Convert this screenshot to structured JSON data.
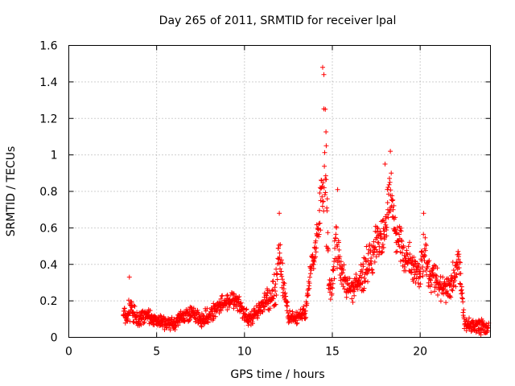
{
  "chart_data": {
    "type": "scatter",
    "title": "Day 265 of 2011, SRMTID for receiver lpal",
    "xlabel": "GPS time / hours",
    "ylabel": "SRMTID / TECUs",
    "xlim": [
      0,
      24
    ],
    "ylim": [
      0,
      1.6
    ],
    "grid": true,
    "marker": "+",
    "color": "#ff0000",
    "xticks": [
      0,
      5,
      10,
      15,
      20
    ],
    "xtick_labels": [
      "0",
      "5",
      "10",
      "15",
      "20"
    ],
    "yticks": [
      0,
      0.2,
      0.4,
      0.6,
      0.8,
      1.0,
      1.2,
      1.4,
      1.6
    ],
    "ytick_labels": [
      "0",
      "0.2",
      "0.4",
      "0.6",
      "0.8",
      "1",
      "1.2",
      "1.4",
      "1.6"
    ],
    "series": [
      {
        "name": "SRMTID",
        "trend_x": [
          3.1,
          3.5,
          4.0,
          4.5,
          5.0,
          5.5,
          6.0,
          6.5,
          7.0,
          7.5,
          8.0,
          8.5,
          9.0,
          9.5,
          9.8,
          10.2,
          10.6,
          11.0,
          11.5,
          11.8,
          12.0,
          12.5,
          13.0,
          13.5,
          13.8,
          14.0,
          14.2,
          14.4,
          14.6,
          14.8,
          15.0,
          15.2,
          15.5,
          16.0,
          16.5,
          17.0,
          17.5,
          18.0,
          18.3,
          18.6,
          19.0,
          19.5,
          20.0,
          20.2,
          20.5,
          21.0,
          21.5,
          22.0,
          22.2,
          22.5,
          23.0,
          23.5,
          23.9
        ],
        "trend_y": [
          0.12,
          0.15,
          0.1,
          0.12,
          0.09,
          0.08,
          0.07,
          0.12,
          0.13,
          0.1,
          0.12,
          0.18,
          0.2,
          0.22,
          0.15,
          0.1,
          0.12,
          0.18,
          0.22,
          0.3,
          0.45,
          0.12,
          0.1,
          0.15,
          0.4,
          0.45,
          0.6,
          0.8,
          0.95,
          0.3,
          0.25,
          0.55,
          0.35,
          0.25,
          0.3,
          0.4,
          0.5,
          0.6,
          0.8,
          0.55,
          0.45,
          0.4,
          0.35,
          0.5,
          0.35,
          0.3,
          0.25,
          0.35,
          0.45,
          0.08,
          0.06,
          0.06,
          0.05
        ],
        "spread_y": [
          0.05,
          0.08,
          0.06,
          0.05,
          0.04,
          0.04,
          0.04,
          0.05,
          0.05,
          0.05,
          0.05,
          0.06,
          0.06,
          0.06,
          0.05,
          0.05,
          0.05,
          0.06,
          0.08,
          0.15,
          0.15,
          0.04,
          0.04,
          0.05,
          0.06,
          0.08,
          0.15,
          0.3,
          0.55,
          0.1,
          0.08,
          0.15,
          0.1,
          0.08,
          0.1,
          0.12,
          0.15,
          0.15,
          0.2,
          0.15,
          0.12,
          0.12,
          0.1,
          0.15,
          0.1,
          0.1,
          0.08,
          0.1,
          0.1,
          0.05,
          0.04,
          0.05,
          0.05
        ],
        "spikes": [
          {
            "x": 3.45,
            "y": 0.33
          },
          {
            "x": 11.98,
            "y": 0.68
          },
          {
            "x": 14.45,
            "y": 1.48
          },
          {
            "x": 14.52,
            "y": 1.44
          },
          {
            "x": 14.6,
            "y": 1.25
          },
          {
            "x": 14.65,
            "y": 1.05
          },
          {
            "x": 15.3,
            "y": 0.81
          },
          {
            "x": 18.3,
            "y": 1.02
          },
          {
            "x": 18.0,
            "y": 0.95
          },
          {
            "x": 20.2,
            "y": 0.68
          }
        ]
      }
    ]
  }
}
